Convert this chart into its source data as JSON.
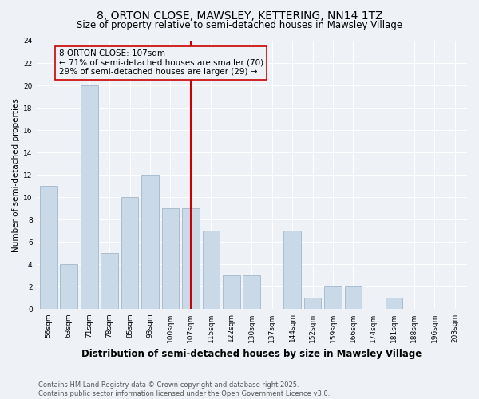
{
  "title": "8, ORTON CLOSE, MAWSLEY, KETTERING, NN14 1TZ",
  "subtitle": "Size of property relative to semi-detached houses in Mawsley Village",
  "xlabel": "Distribution of semi-detached houses by size in Mawsley Village",
  "ylabel": "Number of semi-detached properties",
  "categories": [
    "56sqm",
    "63sqm",
    "71sqm",
    "78sqm",
    "85sqm",
    "93sqm",
    "100sqm",
    "107sqm",
    "115sqm",
    "122sqm",
    "130sqm",
    "137sqm",
    "144sqm",
    "152sqm",
    "159sqm",
    "166sqm",
    "174sqm",
    "181sqm",
    "188sqm",
    "196sqm",
    "203sqm"
  ],
  "values": [
    11,
    4,
    20,
    5,
    10,
    12,
    9,
    9,
    7,
    3,
    3,
    0,
    7,
    1,
    2,
    2,
    0,
    1,
    0,
    0,
    0
  ],
  "bar_color": "#c9d9e8",
  "bar_edgecolor": "#a0b8cc",
  "highlight_index": 7,
  "annotation_text": "8 ORTON CLOSE: 107sqm\n← 71% of semi-detached houses are smaller (70)\n29% of semi-detached houses are larger (29) →",
  "annotation_box_edgecolor": "#cc0000",
  "vline_color": "#cc0000",
  "ylim": [
    0,
    24
  ],
  "yticks": [
    0,
    2,
    4,
    6,
    8,
    10,
    12,
    14,
    16,
    18,
    20,
    22,
    24
  ],
  "bg_color": "#eef2f7",
  "grid_color": "#ffffff",
  "footer": "Contains HM Land Registry data © Crown copyright and database right 2025.\nContains public sector information licensed under the Open Government Licence v3.0.",
  "title_fontsize": 10,
  "subtitle_fontsize": 8.5,
  "xlabel_fontsize": 8.5,
  "ylabel_fontsize": 7.5,
  "tick_fontsize": 6.5,
  "footer_fontsize": 6.0,
  "annot_fontsize": 7.5
}
